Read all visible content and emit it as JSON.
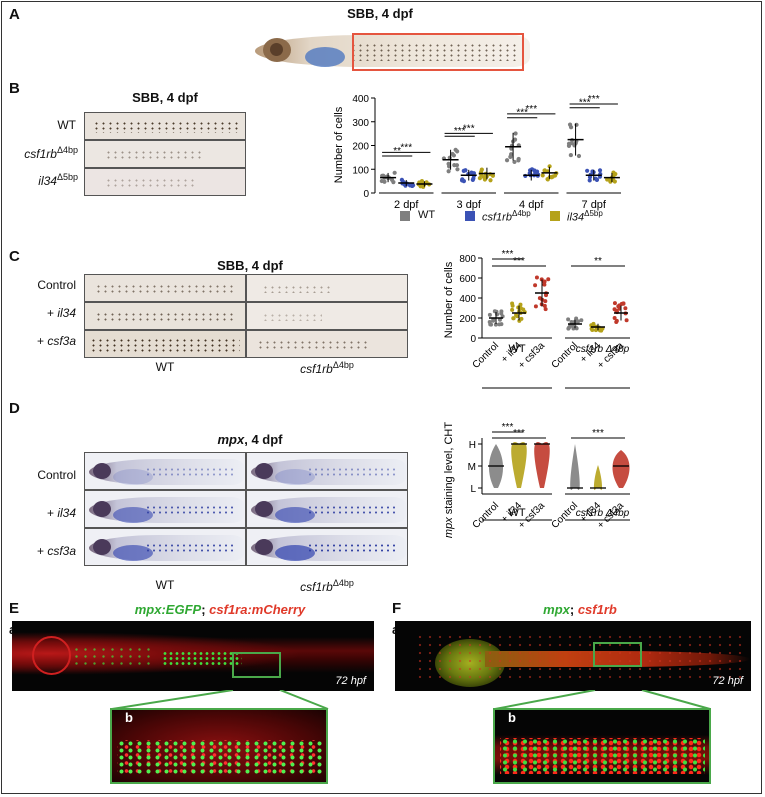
{
  "panels": {
    "A": "A",
    "B": "B",
    "C": "C",
    "D": "D",
    "E": "E",
    "F": "F"
  },
  "panelA": {
    "title": "SBB, 4 dpf"
  },
  "panelB": {
    "title": "SBB, 4 dpf",
    "rows": {
      "wt": "WT",
      "csf_gene": "csf1rb",
      "csf_sup": "Δ4bp",
      "il34_gene": "il34",
      "il34_sup": "Δ5bp"
    }
  },
  "panelC": {
    "title": "SBB, 4 dpf",
    "rows": {
      "control": "Control",
      "il34_plus": "+ ",
      "il34_gene": "il34",
      "csf3a_plus": "+ ",
      "csf3a_gene": "csf3a"
    },
    "col_wt": "WT",
    "col_mut_gene": "csf1rb",
    "col_mut_sup": "Δ4bp"
  },
  "panelD": {
    "title_gene": "mpx",
    "title_rest": ", 4 dpf",
    "rows": {
      "control": "Control",
      "il34_plus": "+ ",
      "il34_gene": "il34",
      "csf3a_plus": "+ ",
      "csf3a_gene": "csf3a"
    },
    "col_wt": "WT",
    "col_mut_gene": "csf1rb",
    "col_mut_sup": "Δ4bp"
  },
  "panelE": {
    "sub_a": "a",
    "sub_b": "b",
    "title_green": "mpx:EGFP",
    "title_sep": "; ",
    "title_red": "csf1ra:mCherry",
    "time": "72 hpf"
  },
  "panelF": {
    "sub_a": "a",
    "sub_b": "b",
    "title_green": "mpx",
    "title_sep": "; ",
    "title_red": "csf1rb",
    "time": "72 hpf"
  },
  "colors": {
    "wt": "#7f7f7f",
    "csf1rb": "#3b52b5",
    "il34": "#b5a21a",
    "csf3a": "#c0392b"
  },
  "chart_data": [
    {
      "type": "scatter",
      "id": "B",
      "ylabel": "Number of cells",
      "ylim": [
        0,
        400
      ],
      "yticks": [
        0,
        100,
        200,
        300,
        400
      ],
      "categories": [
        "2 dpf",
        "3 dpf",
        "4 dpf",
        "7 dpf"
      ],
      "series": [
        {
          "name": "WT",
          "means": [
            65,
            140,
            195,
            225
          ]
        },
        {
          "name": "csf1rb Δ4bp",
          "means": [
            42,
            75,
            75,
            75
          ]
        },
        {
          "name": "il34 Δ5bp",
          "means": [
            38,
            82,
            85,
            65
          ]
        }
      ],
      "significance": [
        "**",
        "***",
        "***",
        "***",
        "***",
        "***",
        "***",
        "***"
      ],
      "legend": [
        "WT",
        "csf1rb",
        "il34"
      ],
      "legend_sup": [
        "",
        "Δ4bp",
        "Δ5bp"
      ]
    },
    {
      "type": "scatter",
      "id": "C",
      "ylabel": "Number of cells",
      "ylim": [
        0,
        800
      ],
      "yticks": [
        0,
        200,
        400,
        600,
        800
      ],
      "categories": [
        "Control",
        "+ il34",
        "+ csf3a",
        "Control",
        "+ il34",
        "+ csf3a"
      ],
      "groups": [
        "WT",
        "csf1rb Δ4bp"
      ],
      "means": [
        200,
        250,
        450,
        140,
        110,
        250
      ],
      "significance": [
        "***",
        "***",
        "**"
      ]
    },
    {
      "type": "violin",
      "id": "D",
      "ylabel": "mpx staining level, CHT",
      "ylevels": [
        "L",
        "M",
        "H"
      ],
      "categories": [
        "Control",
        "+ il34",
        "+ csf3a",
        "Control",
        "+ il34",
        "+ csf3a"
      ],
      "groups": [
        "WT",
        "csf1rb Δ4bp"
      ],
      "medians": [
        "M",
        "H",
        "H",
        "L",
        "L",
        "M"
      ],
      "significance": [
        "***",
        "***",
        "***"
      ]
    }
  ]
}
